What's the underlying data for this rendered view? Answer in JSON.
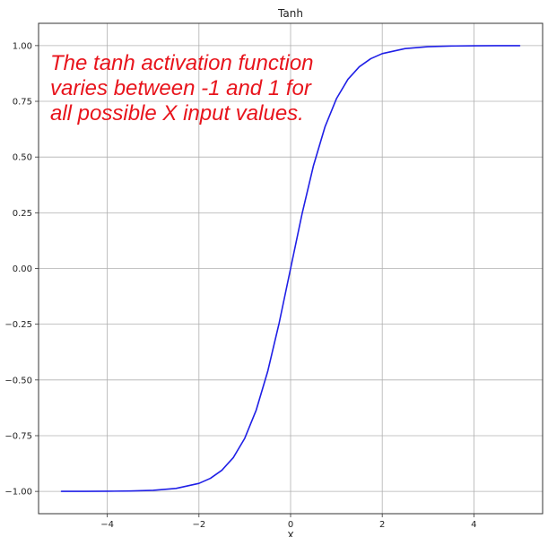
{
  "chart_data": {
    "type": "line",
    "title": "Tanh",
    "xlabel": "X",
    "ylabel": "",
    "xlim": [
      -5.5,
      5.5
    ],
    "ylim": [
      -1.1,
      1.1
    ],
    "grid": true,
    "xticks": [
      -4,
      -2,
      0,
      2,
      4
    ],
    "xtick_labels": [
      "−4",
      "−2",
      "0",
      "2",
      "4"
    ],
    "yticks": [
      -1.0,
      -0.75,
      -0.5,
      -0.25,
      0.0,
      0.25,
      0.5,
      0.75,
      1.0
    ],
    "ytick_labels": [
      "−1.00",
      "−0.75",
      "−0.50",
      "−0.25",
      "0.00",
      "0.25",
      "0.50",
      "0.75",
      "1.00"
    ],
    "series": [
      {
        "color": "#1f1fe6",
        "x": [
          -5.0,
          -4.5,
          -4.0,
          -3.5,
          -3.0,
          -2.5,
          -2.0,
          -1.75,
          -1.5,
          -1.25,
          -1.0,
          -0.75,
          -0.5,
          -0.25,
          0.0,
          0.25,
          0.5,
          0.75,
          1.0,
          1.25,
          1.5,
          1.75,
          2.0,
          2.5,
          3.0,
          3.5,
          4.0,
          4.5,
          5.0
        ],
        "y": [
          -0.9999,
          -0.9998,
          -0.9993,
          -0.9982,
          -0.9951,
          -0.9866,
          -0.964,
          -0.9414,
          -0.9051,
          -0.8483,
          -0.7616,
          -0.6351,
          -0.4621,
          -0.2449,
          0.0,
          0.2449,
          0.4621,
          0.6351,
          0.7616,
          0.8483,
          0.9051,
          0.9414,
          0.964,
          0.9866,
          0.9951,
          0.9982,
          0.9993,
          0.9998,
          0.9999
        ]
      }
    ],
    "annotation": "The tanh activation function varies between -1 and 1 for all possible X input values."
  }
}
